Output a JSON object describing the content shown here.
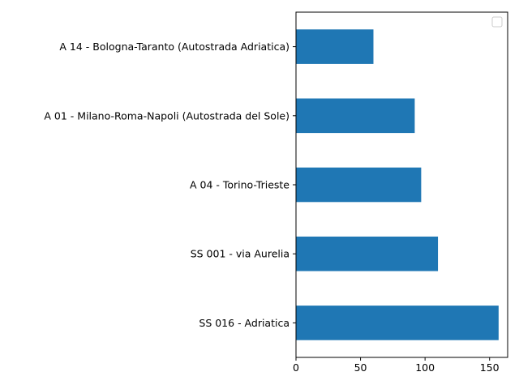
{
  "chart_data": {
    "type": "bar",
    "orientation": "horizontal",
    "categories": [
      "A 14 -  Bologna-Taranto (Autostrada Adriatica)",
      "A 01 -  Milano-Roma-Napoli (Autostrada del Sole)",
      "A 04 -  Torino-Trieste",
      "SS 001 -  via Aurelia",
      "SS 016 -  Adriatica"
    ],
    "values": [
      60,
      92,
      97,
      110,
      157
    ],
    "xlim": [
      0,
      164
    ],
    "xticks": [
      0,
      50,
      100,
      150
    ],
    "xtick_labels": [
      "0",
      "50",
      "100",
      "150"
    ],
    "title": "",
    "xlabel": "",
    "ylabel": "",
    "grid": false,
    "legend": {
      "position": "top-right",
      "entries": []
    },
    "colors": {
      "bar": "#1f77b4",
      "axis": "#000000",
      "background": "#ffffff"
    }
  }
}
